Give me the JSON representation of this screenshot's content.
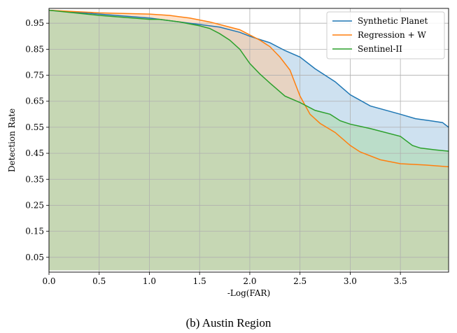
{
  "caption": "(b) Austin Region",
  "chart_data": {
    "type": "area",
    "xlabel": "-Log(FAR)",
    "ylabel": "Detection Rate",
    "xlim": [
      0,
      3.98
    ],
    "ylim": [
      -0.007,
      1.007
    ],
    "xticks": [
      0.0,
      0.5,
      1.0,
      1.5,
      2.0,
      2.5,
      3.0,
      3.5
    ],
    "xtick_labels": [
      "0.0",
      "0.5",
      "1.0",
      "1.5",
      "2.0",
      "2.5",
      "3.0",
      "3.5"
    ],
    "yticks": [
      0.05,
      0.15,
      0.25,
      0.35,
      0.45,
      0.55,
      0.65,
      0.75,
      0.85,
      0.95
    ],
    "ytick_labels": [
      "0.05",
      "0.15",
      "0.25",
      "0.35",
      "0.45",
      "0.55",
      "0.65",
      "0.75",
      "0.85",
      "0.95"
    ],
    "grid": true,
    "legend_position": "top-right",
    "fill_baseline": 0.0,
    "series": [
      {
        "name": "Synthetic Planet",
        "color": "#1f77b4",
        "fill": "#a6c8e3",
        "x": [
          0.0,
          0.5,
          1.0,
          1.5,
          1.7,
          1.9,
          2.0,
          2.2,
          2.35,
          2.5,
          2.65,
          2.85,
          3.0,
          3.2,
          3.5,
          3.65,
          3.8,
          3.92,
          3.98
        ],
        "y": [
          1.0,
          0.985,
          0.97,
          0.945,
          0.935,
          0.915,
          0.9,
          0.875,
          0.845,
          0.82,
          0.775,
          0.725,
          0.675,
          0.632,
          0.6,
          0.583,
          0.575,
          0.568,
          0.55
        ]
      },
      {
        "name": "Regression + W",
        "color": "#ff7f0e",
        "fill": "#fbc89d",
        "x": [
          0.0,
          0.5,
          1.0,
          1.2,
          1.4,
          1.6,
          1.8,
          1.9,
          2.0,
          2.1,
          2.2,
          2.3,
          2.4,
          2.5,
          2.6,
          2.7,
          2.85,
          3.0,
          3.1,
          3.3,
          3.5,
          3.75,
          3.98
        ],
        "y": [
          1.0,
          0.99,
          0.985,
          0.98,
          0.97,
          0.955,
          0.935,
          0.925,
          0.905,
          0.885,
          0.86,
          0.82,
          0.77,
          0.67,
          0.6,
          0.565,
          0.53,
          0.48,
          0.455,
          0.425,
          0.41,
          0.405,
          0.398
        ]
      },
      {
        "name": "Sentinel-II",
        "color": "#2ca02c",
        "fill": "#abdaa9",
        "x": [
          0.0,
          0.5,
          1.0,
          1.1,
          1.3,
          1.5,
          1.6,
          1.7,
          1.8,
          1.9,
          2.0,
          2.1,
          2.2,
          2.35,
          2.5,
          2.65,
          2.8,
          2.9,
          3.0,
          3.2,
          3.5,
          3.62,
          3.7,
          3.85,
          3.98
        ],
        "y": [
          1.0,
          0.98,
          0.965,
          0.965,
          0.955,
          0.94,
          0.93,
          0.91,
          0.885,
          0.85,
          0.795,
          0.755,
          0.72,
          0.67,
          0.645,
          0.615,
          0.6,
          0.575,
          0.562,
          0.545,
          0.515,
          0.48,
          0.47,
          0.463,
          0.458
        ]
      }
    ]
  }
}
